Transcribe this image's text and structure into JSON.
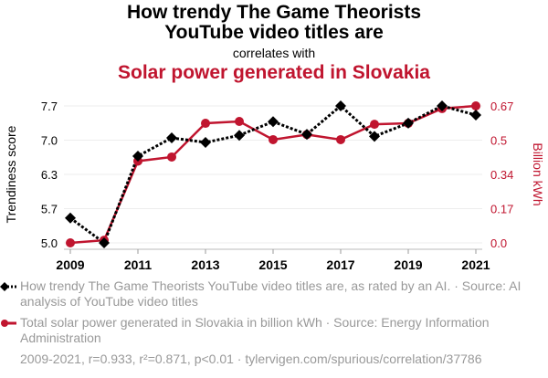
{
  "title_line1": "How trendy The Game Theorists",
  "title_line2": "YouTube video titles are",
  "correlates_with": "correlates with",
  "subtitle": "Solar power generated in Slovakia",
  "legend": {
    "series1": "How trendy The Game Theorists YouTube video titles are, as rated by an AI. · Source: AI analysis of YouTube video titles",
    "series2": "Total solar power generated in Slovakia in billion kWh · Source: Energy Information Administration"
  },
  "footer": "2009-2021, r=0.933, r²=0.871, p<0.01 · tylervigen.com/spurious/correlation/37786",
  "colors": {
    "series1": "#000000",
    "series2": "#c0152f",
    "grid": "#eeeeee",
    "axis": "#999999"
  },
  "chart_data": {
    "type": "line",
    "title": "How trendy The Game Theorists YouTube video titles are correlates with Solar power generated in Slovakia",
    "x": [
      2009,
      2010,
      2011,
      2012,
      2013,
      2014,
      2015,
      2016,
      2017,
      2018,
      2019,
      2020,
      2021
    ],
    "x_ticks": [
      "2009",
      "2011",
      "2013",
      "2015",
      "2017",
      "2019",
      "2021"
    ],
    "xlim": [
      2009,
      2021
    ],
    "ylabel_left": "Trendiness score",
    "ylabel_right": "Billion kWh",
    "y_left_ticks": [
      "5.0",
      "5.7",
      "6.3",
      "7.0",
      "7.7"
    ],
    "y_left_tick_values": [
      5.0,
      5.675,
      6.35,
      7.025,
      7.7
    ],
    "y_right_ticks": [
      "0.0",
      "0.17",
      "0.34",
      "0.5",
      "0.67"
    ],
    "y_right_tick_values": [
      0.0,
      0.1675,
      0.335,
      0.5025,
      0.67
    ],
    "ylim_left": [
      5.0,
      7.7
    ],
    "ylim_right": [
      0.0,
      0.67
    ],
    "grid": true,
    "series": [
      {
        "name": "How trendy The Game Theorists YouTube video titles are",
        "axis": "left",
        "style": "dotted",
        "marker": "diamond",
        "values": [
          5.49,
          5.0,
          6.71,
          7.07,
          6.98,
          7.12,
          7.39,
          7.14,
          7.7,
          7.1,
          7.36,
          7.7,
          7.52
        ]
      },
      {
        "name": "Solar power generated in Slovakia",
        "axis": "right",
        "style": "solid",
        "marker": "circle",
        "values": [
          0.0,
          0.013,
          0.4,
          0.42,
          0.585,
          0.594,
          0.505,
          0.53,
          0.505,
          0.58,
          0.585,
          0.657,
          0.67
        ]
      }
    ]
  }
}
